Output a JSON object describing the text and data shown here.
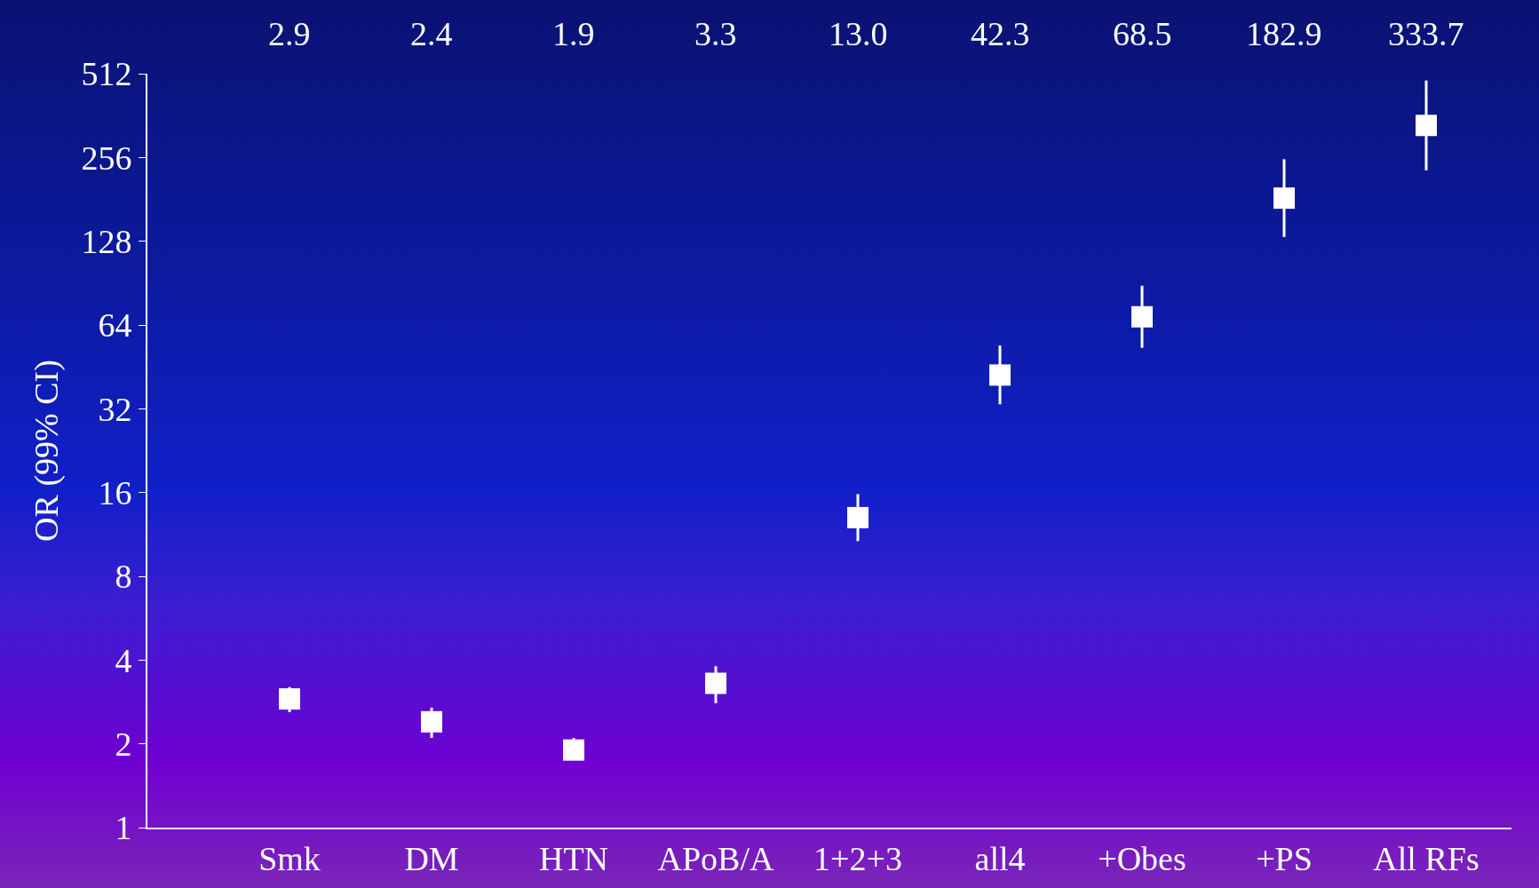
{
  "chart_data": {
    "type": "scatter",
    "ylabel": "OR (99% CI)",
    "categories": [
      "Smk",
      "DM",
      "HTN",
      "APoB/A",
      "1+2+3",
      "all4",
      "+Obes",
      "+PS",
      "All RFs"
    ],
    "values": [
      2.9,
      2.4,
      1.9,
      3.3,
      13.0,
      42.3,
      68.5,
      182.9,
      333.7
    ],
    "errors": [
      [
        2.6,
        3.2
      ],
      [
        2.1,
        2.7
      ],
      [
        1.75,
        2.1
      ],
      [
        2.8,
        3.8
      ],
      [
        10.7,
        15.8
      ],
      [
        33.2,
        54.0
      ],
      [
        53.0,
        88.6
      ],
      [
        132.6,
        252.2
      ],
      [
        230.2,
        483.9
      ]
    ],
    "annotations": [
      "2.9",
      "2.4",
      "1.9",
      "3.3",
      "13.0",
      "42.3",
      "68.5",
      "182.9",
      "333.7"
    ],
    "color": "#ffffff",
    "marker": "square",
    "log": "y",
    "ylim": [
      1,
      512
    ],
    "yticks": [
      1,
      2,
      4,
      8,
      16,
      32,
      64,
      128,
      256,
      512
    ],
    "grid": false,
    "legend": false
  }
}
